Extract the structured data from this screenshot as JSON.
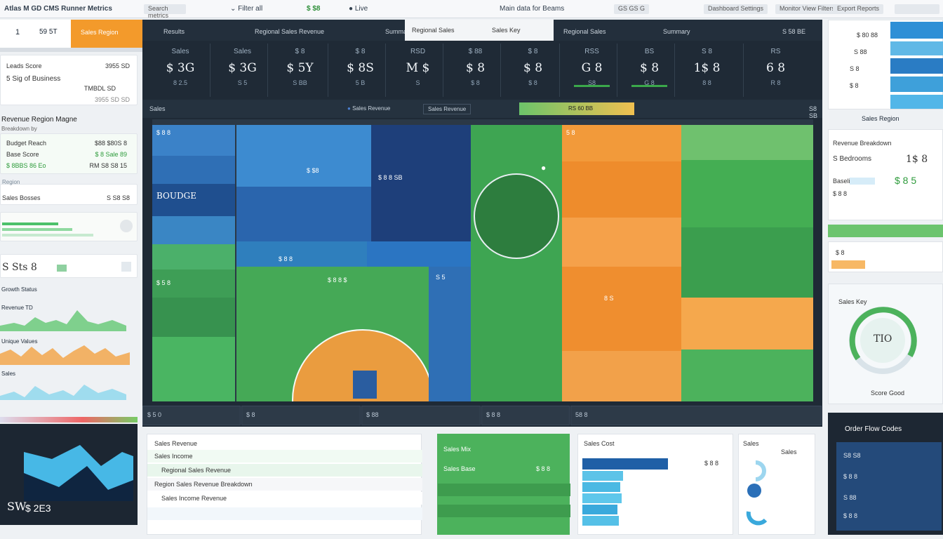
{
  "topbar": {
    "title": "Atlas M GD CMS Runner Metrics",
    "search_placeholder": "Search metrics",
    "filter": "Filter all",
    "currency": "$ $8",
    "status": "Live",
    "center_text": "Main data for Beams",
    "right_chip": "GS GS G",
    "menu1": "Dashboard Settings",
    "menu2": "Monitor View Filters",
    "menu3": "Export Reports"
  },
  "left": {
    "header_num": "1",
    "header_val": "59 5T",
    "header_tab": "Sales Region",
    "card1": {
      "r1l": "Leads Score",
      "r1r": "3955 SD",
      "r2l": "5 Sig of Business",
      "r2r": "TMBDL SD",
      "r3r": "3955 SD SD"
    },
    "card2": {
      "title": "Revenue Region Magne",
      "sub": "Breakdown by",
      "r1l": "Budget Reach",
      "r1r": "$88 $80S 8",
      "r2l": "Base Score",
      "r2r": "$ 8 Sale 89",
      "r3l": "$ 8BBS 86 Eo",
      "r3r": "RM S8 S8 15"
    },
    "card3": {
      "title": "Region",
      "r1l": "Sales Bosses",
      "r1r": "S S8 S8"
    },
    "card4": {
      "big": "S Sts 8"
    },
    "card5": {
      "title": "Growth Status",
      "r1l": "Revenue TD",
      "r2l": "Unique Values",
      "r3l": "Sales"
    },
    "dark": {
      "big": "SW",
      "val": "$ 2E3"
    }
  },
  "center": {
    "tab1": "Results",
    "tab2": "Regional Sales Revenue",
    "tab3": "Summary",
    "tab4": "Regional Sales",
    "tab5": "Sales Key",
    "tab6": "Summary",
    "tab7": "S 58 BE",
    "kpis": [
      {
        "lab": "Sales",
        "val": "$ 3G",
        "sub": "8 2.5"
      },
      {
        "lab": "Sales",
        "val": "$ 3G",
        "sub": "S 5"
      },
      {
        "lab": "$ 8",
        "val": "$ 5Y",
        "sub": "S BB"
      },
      {
        "lab": "$ 8",
        "val": "$ 8S",
        "sub": "5 B"
      },
      {
        "lab": "RSD",
        "val": "M $",
        "sub": "S"
      },
      {
        "lab": "$ 88",
        "val": "$ 8",
        "sub": "$ 8"
      },
      {
        "lab": "$ 8",
        "val": "$ 8",
        "sub": "$ 8"
      },
      {
        "lab": "RSS",
        "val": "G 8",
        "sub": "S8"
      },
      {
        "lab": "BS",
        "val": "$ 8",
        "sub": "G 8"
      },
      {
        "lab": "S 8",
        "val": "1$ 8",
        "sub": "8 8"
      },
      {
        "lab": "RS",
        "val": "6 8",
        "sub": "R 8"
      }
    ],
    "sub_title": "Sales",
    "sub_legend": "Sales Revenue",
    "sub_chip": "Sales Revenue",
    "sub_bar": "RS 60 BB",
    "sub_more": "S8 SB",
    "tile1": "$ 8 8",
    "tile2": "BOUDGE",
    "tile3": "$ 5 8",
    "tile4": "$ $8",
    "tile5": "$ 8 8 SB",
    "tile6": "$ 8 8",
    "tile7": "$ 8 8 $",
    "tile8": "S 5",
    "tile9": "5 8",
    "tile10": "8 S",
    "bottom1": "$ 5 0",
    "bottom2": "$ 8",
    "bottom3": "$ 88",
    "bottom4": "$ 8 8",
    "bottom5": "58 8"
  },
  "right": {
    "r1": "$ 80 88",
    "r2": "S 88",
    "r3": "S 8",
    "r4": "$ 8",
    "card2_title": "Sales Region",
    "card2_head": "Revenue Breakdown",
    "card2_big1": "1$ 8",
    "card2_big2": "$ 8 5",
    "card2_r1": "S Bedrooms",
    "card2_r2": "Baseline",
    "card2_r3": "$ 8 8",
    "gauge_val": "TIO",
    "gauge_lab": "Sales Key",
    "gauge_foot": "Score Good",
    "dark_title": "Order Flow Codes",
    "dark_r1": "S8 S8",
    "dark_r2": "$ 8 8",
    "dark_r3": "S 88",
    "dark_r4": "$ 8 8"
  },
  "bottom": {
    "p1_title": "Sales Revenue",
    "p1_r1": "Sales Income",
    "p1_r2": "Regional Sales Revenue",
    "p1_r3": "Region Sales Revenue Breakdown",
    "p1_r4": "Sales Income Revenue",
    "p2_r1": "Sales Mix",
    "p2_r2": "Sales Base",
    "p2_r3": "$ 8 8",
    "p3_title": "Sales Cost",
    "p3_r1": "$ 8 8",
    "p4_title": "Sales",
    "p4_r1": "Sales"
  }
}
